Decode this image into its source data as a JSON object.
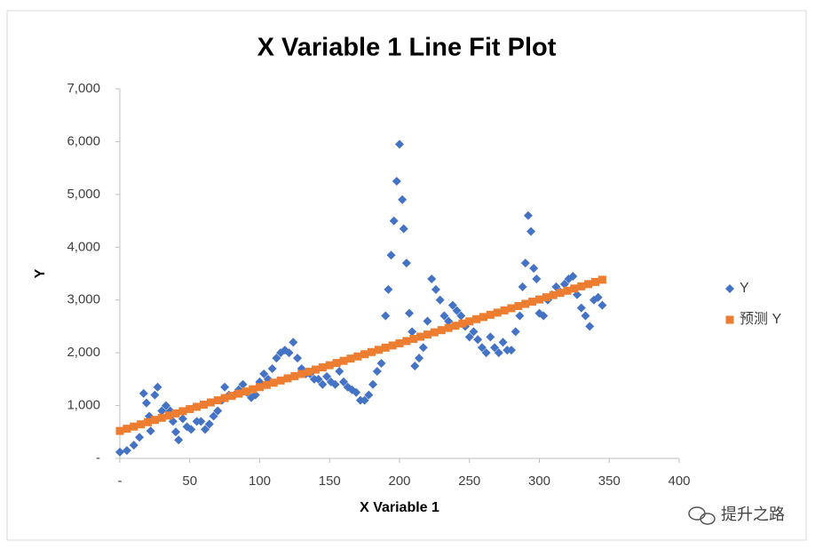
{
  "chart_data": {
    "type": "scatter",
    "title": "X Variable 1 Line Fit  Plot",
    "x_label": "X Variable 1",
    "y_label": "Y",
    "xlim": [
      0,
      400
    ],
    "xticks": [
      {
        "value": 0,
        "label": "-"
      },
      50,
      100,
      150,
      200,
      250,
      300,
      350,
      400
    ],
    "ylim": [
      0,
      7000
    ],
    "yticks": [
      {
        "value": 0,
        "label": "-"
      },
      {
        "value": 1000,
        "label": "1,000"
      },
      {
        "value": 2000,
        "label": "2,000"
      },
      {
        "value": 3000,
        "label": "3,000"
      },
      {
        "value": 4000,
        "label": "4,000"
      },
      {
        "value": 5000,
        "label": "5,000"
      },
      {
        "value": 6000,
        "label": "6,000"
      },
      {
        "value": 7000,
        "label": "7,000"
      }
    ],
    "grid": false,
    "legend": "right",
    "watermark": "提升之路",
    "series": [
      {
        "name": "Y",
        "color": "#4472c4",
        "marker": "diamond",
        "x": [
          0,
          5,
          10,
          14,
          17,
          19,
          21,
          22,
          25,
          27,
          30,
          33,
          36,
          38,
          40,
          42,
          45,
          48,
          51,
          55,
          58,
          61,
          64,
          67,
          70,
          73,
          75,
          78,
          82,
          85,
          88,
          91,
          94,
          97,
          100,
          103,
          106,
          109,
          112,
          115,
          118,
          121,
          124,
          127,
          130,
          133,
          136,
          139,
          142,
          145,
          148,
          151,
          154,
          157,
          160,
          163,
          166,
          169,
          172,
          175,
          178,
          181,
          184,
          187,
          190,
          192,
          194,
          196,
          198,
          200,
          202,
          203,
          205,
          207,
          209,
          211,
          214,
          217,
          220,
          223,
          226,
          229,
          232,
          235,
          238,
          241,
          244,
          247,
          250,
          253,
          256,
          259,
          262,
          265,
          268,
          271,
          274,
          277,
          280,
          283,
          286,
          288,
          290,
          292,
          294,
          296,
          298,
          300,
          303,
          306,
          309,
          312,
          315,
          318,
          321,
          324,
          327,
          330,
          333,
          336,
          339,
          342,
          345
        ],
        "values": [
          120,
          150,
          250,
          400,
          1230,
          1050,
          800,
          520,
          1200,
          1350,
          900,
          1000,
          900,
          700,
          500,
          350,
          750,
          600,
          550,
          700,
          700,
          550,
          650,
          800,
          900,
          1100,
          1350,
          1200,
          1200,
          1300,
          1400,
          1250,
          1150,
          1200,
          1450,
          1600,
          1500,
          1700,
          1900,
          2000,
          2050,
          2000,
          2200,
          1900,
          1700,
          1600,
          1600,
          1500,
          1500,
          1400,
          1550,
          1450,
          1400,
          1650,
          1450,
          1350,
          1300,
          1250,
          1100,
          1100,
          1200,
          1400,
          1650,
          1800,
          2700,
          3200,
          3850,
          4500,
          5250,
          5950,
          4900,
          4350,
          3700,
          2750,
          2400,
          1750,
          1900,
          2100,
          2600,
          3400,
          3200,
          3000,
          2700,
          2600,
          2900,
          2800,
          2700,
          2500,
          2300,
          2400,
          2250,
          2100,
          2000,
          2300,
          2100,
          2000,
          2200,
          2050,
          2050,
          2400,
          2700,
          3250,
          3700,
          4600,
          4300,
          3600,
          3400,
          2750,
          2700,
          3000,
          3100,
          3250,
          3150,
          3300,
          3400,
          3450,
          3100,
          2850,
          2700,
          2500,
          3000,
          3050,
          2900
        ]
      },
      {
        "name": "预测 Y",
        "color": "#ed7d31",
        "marker": "square",
        "x": [
          0,
          5,
          10,
          15,
          20,
          25,
          30,
          35,
          40,
          45,
          50,
          55,
          60,
          65,
          70,
          75,
          80,
          85,
          90,
          95,
          100,
          105,
          110,
          115,
          120,
          125,
          130,
          135,
          140,
          145,
          150,
          155,
          160,
          165,
          170,
          175,
          180,
          185,
          190,
          195,
          200,
          205,
          210,
          215,
          220,
          225,
          230,
          235,
          240,
          245,
          250,
          255,
          260,
          265,
          270,
          275,
          280,
          285,
          290,
          295,
          300,
          305,
          310,
          315,
          320,
          325,
          330,
          335,
          340,
          345
        ],
        "values": [
          520,
          562,
          603,
          645,
          686,
          728,
          769,
          811,
          852,
          894,
          935,
          977,
          1018,
          1060,
          1101,
          1143,
          1184,
          1226,
          1267,
          1309,
          1350,
          1392,
          1433,
          1475,
          1516,
          1558,
          1599,
          1641,
          1682,
          1724,
          1765,
          1807,
          1848,
          1890,
          1931,
          1973,
          2014,
          2056,
          2097,
          2139,
          2180,
          2222,
          2263,
          2305,
          2346,
          2388,
          2429,
          2471,
          2512,
          2554,
          2595,
          2637,
          2678,
          2720,
          2761,
          2803,
          2844,
          2886,
          2927,
          2969,
          3010,
          3052,
          3093,
          3135,
          3176,
          3218,
          3259,
          3301,
          3342,
          3384
        ]
      }
    ]
  }
}
